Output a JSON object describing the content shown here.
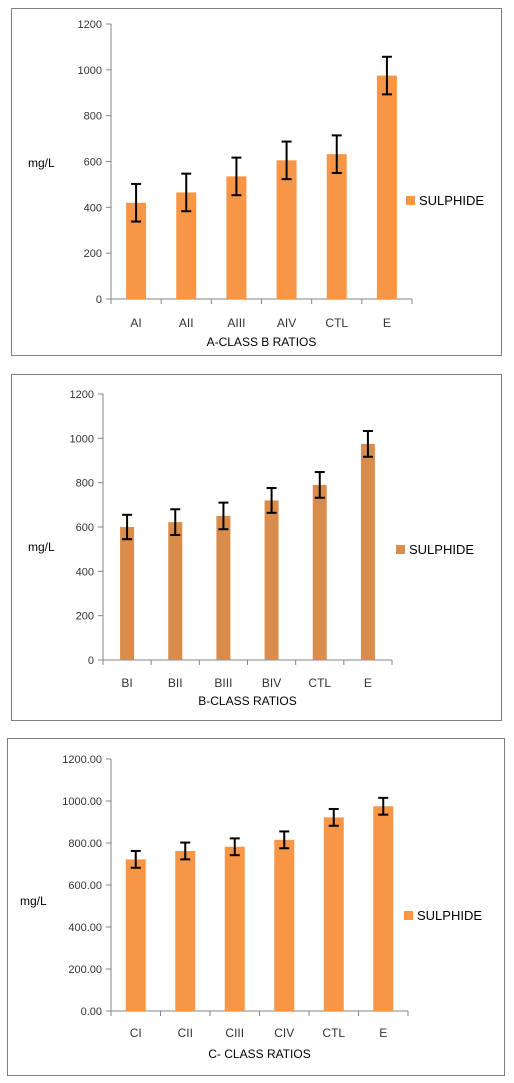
{
  "chart_data": [
    {
      "type": "bar",
      "categories": [
        "AI",
        "AII",
        "AIII",
        "AIV",
        "CTL",
        "E"
      ],
      "series": [
        {
          "name": "SULPHIDE",
          "values": [
            420,
            465,
            535,
            605,
            632,
            975
          ],
          "errors": [
            82,
            82,
            82,
            82,
            82,
            82
          ],
          "color": "#f79646"
        }
      ],
      "ylim": [
        0,
        1200
      ],
      "yticks": [
        "0",
        "200",
        "400",
        "600",
        "800",
        "1000",
        "1200"
      ],
      "xlabel": "A-CLASS B RATIOS",
      "ylabel": "mg/L",
      "grid": false,
      "legend_position": "right"
    },
    {
      "type": "bar",
      "categories": [
        "BI",
        "BII",
        "BIII",
        "BIV",
        "CTL",
        "E"
      ],
      "series": [
        {
          "name": "SULPHIDE",
          "values": [
            600,
            622,
            650,
            720,
            790,
            975
          ],
          "errors": [
            55,
            58,
            60,
            56,
            58,
            58
          ],
          "color": "#d98d4c"
        }
      ],
      "ylim": [
        0,
        1200
      ],
      "yticks": [
        "0",
        "200",
        "400",
        "600",
        "800",
        "1000",
        "1200"
      ],
      "xlabel": "B-CLASS  RATIOS",
      "ylabel": "mg/L",
      "grid": false,
      "legend_position": "right"
    },
    {
      "type": "bar",
      "categories": [
        "CI",
        "CII",
        "CIII",
        "CIV",
        "CTL",
        "E"
      ],
      "series": [
        {
          "name": "SULPHIDE",
          "values": [
            722,
            762,
            782,
            815,
            922,
            975
          ],
          "errors": [
            40,
            40,
            40,
            40,
            40,
            40
          ],
          "color": "#f79646"
        }
      ],
      "ylim": [
        0,
        1200
      ],
      "yticks": [
        "0.00",
        "200.00",
        "400.00",
        "600.00",
        "800.00",
        "1000.00",
        "1200.00"
      ],
      "xlabel": "C- CLASS RATIOS",
      "ylabel": "mg/L",
      "grid": false,
      "legend_position": "right"
    }
  ]
}
